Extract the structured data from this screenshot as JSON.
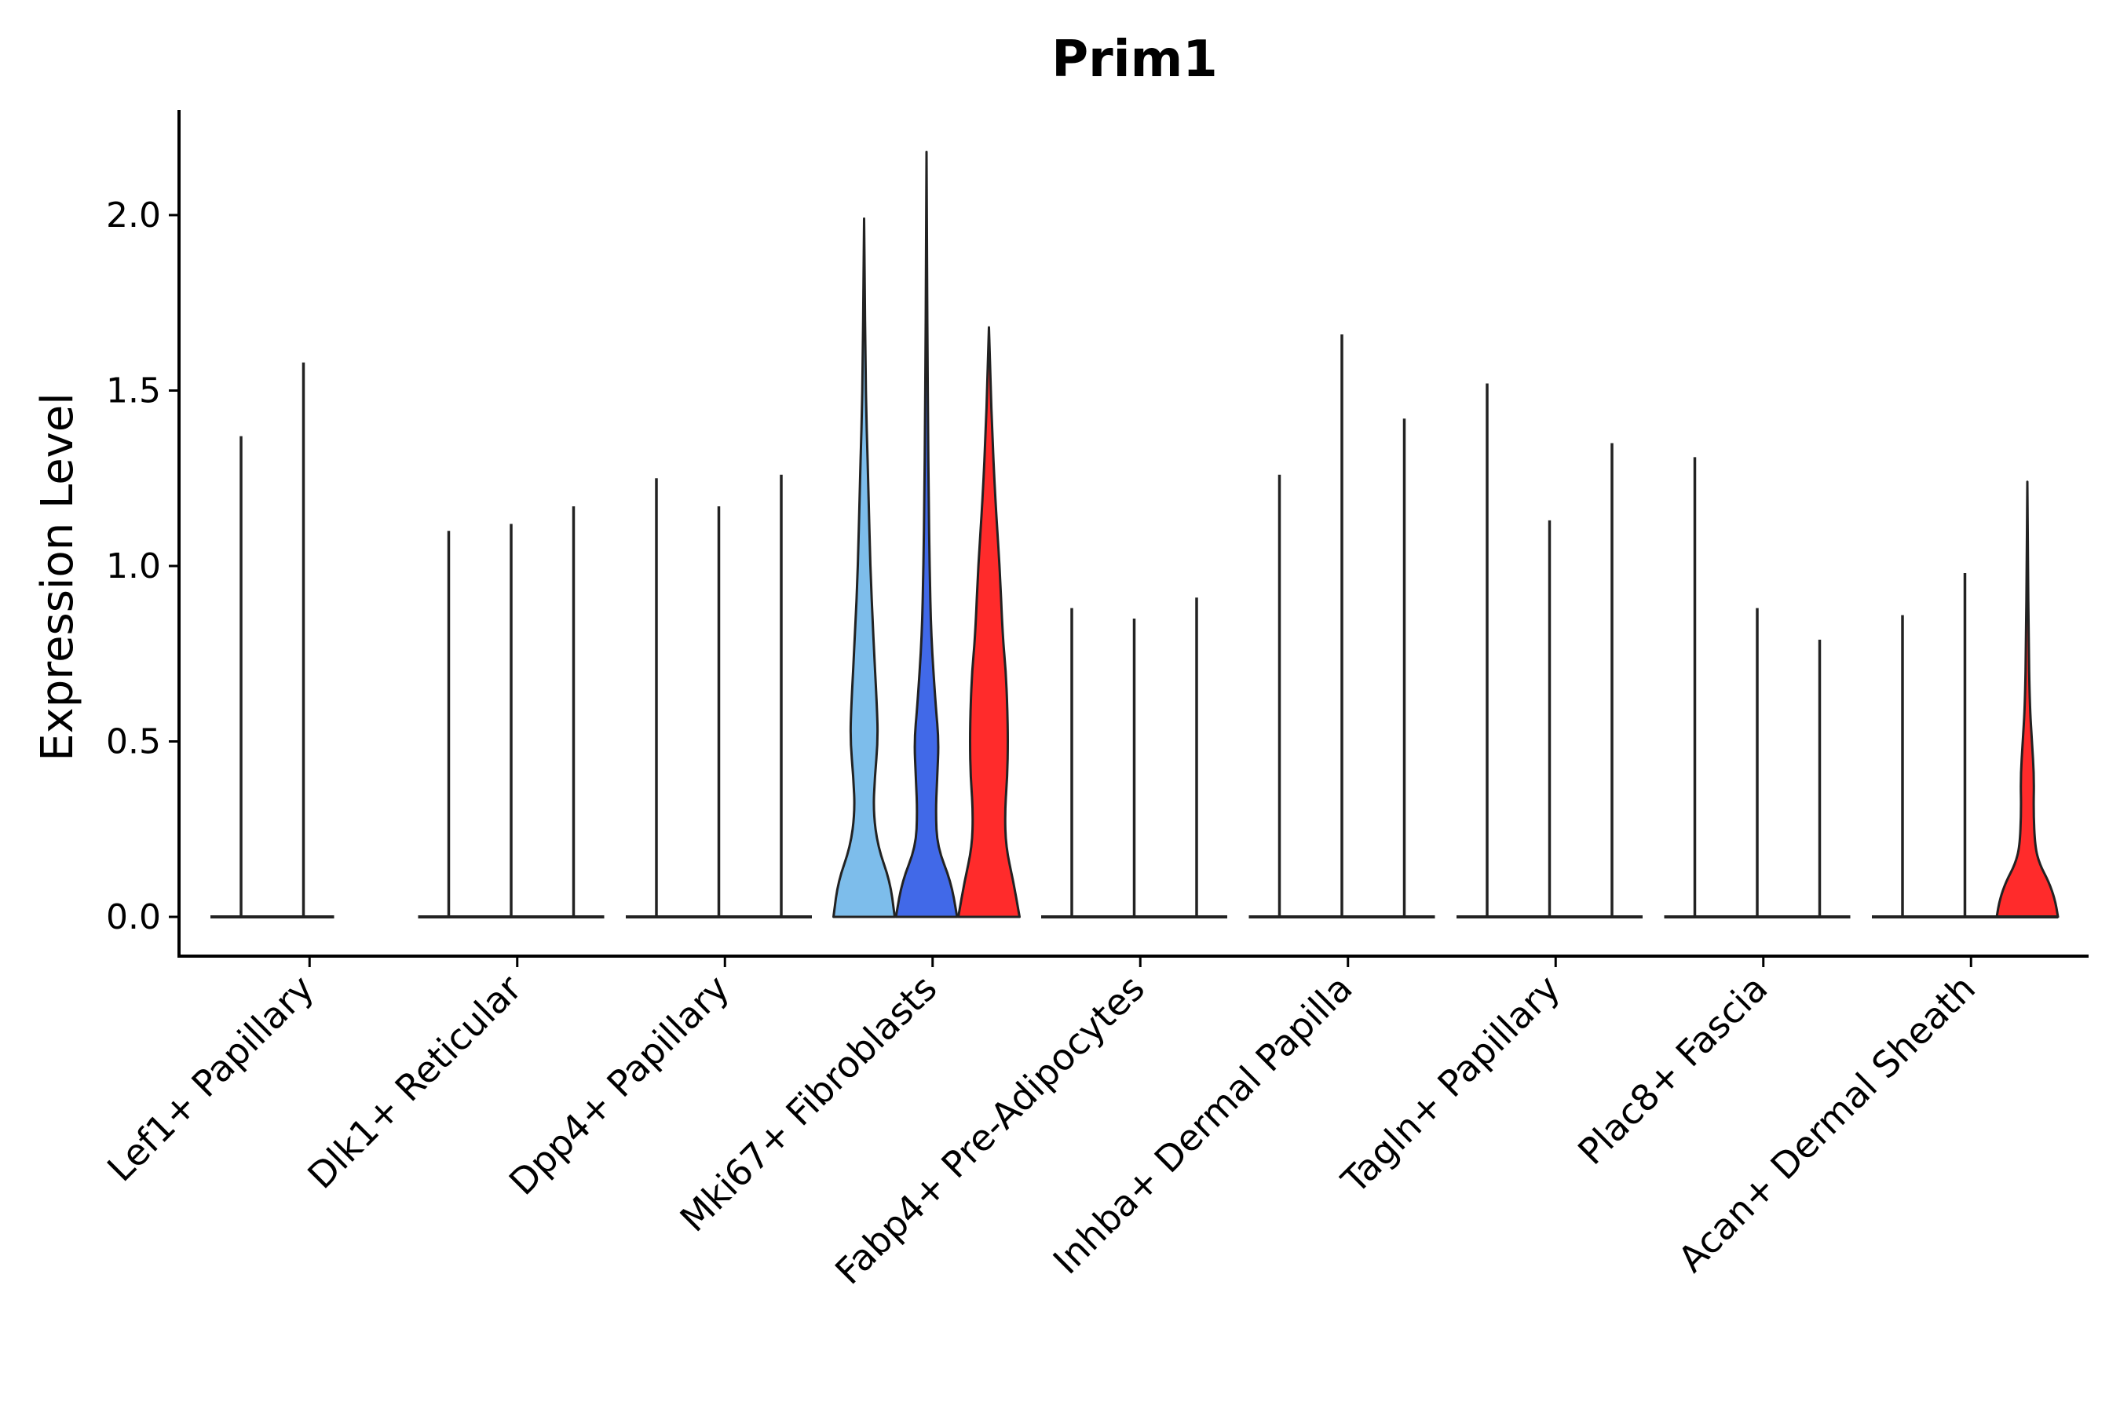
{
  "chart_data": {
    "type": "violin",
    "title": "Prim1",
    "xlabel": "",
    "ylabel": "Expression Level",
    "ylim": [
      -0.11,
      2.3
    ],
    "yticks": [
      0.0,
      0.5,
      1.0,
      1.5,
      2.0
    ],
    "ytick_labels": [
      "0.0",
      "0.5",
      "1.0",
      "1.5",
      "2.0"
    ],
    "grid": false,
    "legend": "none",
    "categories": [
      "Lef1+ Papillary",
      "Dlk1+ Reticular",
      "Dpp4+ Papillary",
      "Mki67+ Fibroblasts",
      "Fabp4+ Pre-Adipocytes",
      "Inhba+ Dermal Papilla",
      "Tagln+ Papillary",
      "Plac8+ Fascia",
      "Acan+ Dermal Sheath"
    ],
    "colors": {
      "light_blue": "#7dbdeb",
      "blue": "#4169e8",
      "red": "#ff2b2b",
      "line": "#222222"
    },
    "groups": [
      {
        "category": "Lef1+ Papillary",
        "violins": [
          {
            "max": 1.37,
            "filled": false
          },
          {
            "max": 1.58,
            "filled": false
          }
        ]
      },
      {
        "category": "Dlk1+ Reticular",
        "violins": [
          {
            "max": 1.1,
            "filled": false
          },
          {
            "max": 1.12,
            "filled": false
          },
          {
            "max": 1.17,
            "filled": false
          }
        ]
      },
      {
        "category": "Dpp4+ Papillary",
        "violins": [
          {
            "max": 1.25,
            "filled": false
          },
          {
            "max": 1.17,
            "filled": false
          },
          {
            "max": 1.26,
            "filled": false
          }
        ]
      },
      {
        "category": "Mki67+ Fibroblasts",
        "violins": [
          {
            "max": 1.99,
            "filled": true,
            "color": "light_blue",
            "profile": [
              [
                0,
                1
              ],
              [
                0.1,
                0.85
              ],
              [
                0.2,
                0.45
              ],
              [
                0.3,
                0.3
              ],
              [
                0.4,
                0.35
              ],
              [
                0.5,
                0.45
              ],
              [
                0.6,
                0.42
              ],
              [
                0.8,
                0.3
              ],
              [
                1.0,
                0.2
              ],
              [
                1.2,
                0.15
              ],
              [
                1.4,
                0.08
              ],
              [
                1.6,
                0.04
              ],
              [
                1.8,
                0.02
              ],
              [
                1.99,
                0
              ]
            ]
          },
          {
            "max": 2.18,
            "filled": true,
            "color": "blue",
            "profile": [
              [
                0,
                1
              ],
              [
                0.1,
                0.8
              ],
              [
                0.2,
                0.35
              ],
              [
                0.3,
                0.3
              ],
              [
                0.4,
                0.35
              ],
              [
                0.5,
                0.4
              ],
              [
                0.6,
                0.3
              ],
              [
                0.8,
                0.15
              ],
              [
                1.0,
                0.1
              ],
              [
                1.2,
                0.07
              ],
              [
                1.4,
                0.05
              ],
              [
                1.6,
                0.03
              ],
              [
                1.8,
                0.02
              ],
              [
                2.18,
                0
              ]
            ]
          },
          {
            "max": 1.68,
            "filled": true,
            "color": "red",
            "profile": [
              [
                0,
                1
              ],
              [
                0.1,
                0.8
              ],
              [
                0.2,
                0.55
              ],
              [
                0.3,
                0.52
              ],
              [
                0.4,
                0.6
              ],
              [
                0.5,
                0.62
              ],
              [
                0.6,
                0.6
              ],
              [
                0.7,
                0.55
              ],
              [
                0.8,
                0.45
              ],
              [
                1.0,
                0.35
              ],
              [
                1.2,
                0.2
              ],
              [
                1.4,
                0.1
              ],
              [
                1.5,
                0.06
              ],
              [
                1.68,
                0
              ]
            ]
          }
        ]
      },
      {
        "category": "Fabp4+ Pre-Adipocytes",
        "violins": [
          {
            "max": 0.88,
            "filled": false
          },
          {
            "max": 0.85,
            "filled": false
          },
          {
            "max": 0.91,
            "filled": false
          }
        ]
      },
      {
        "category": "Inhba+ Dermal Papilla",
        "violins": [
          {
            "max": 1.26,
            "filled": false
          },
          {
            "max": 1.66,
            "filled": false
          },
          {
            "max": 1.42,
            "filled": false
          }
        ]
      },
      {
        "category": "Tagln+ Papillary",
        "violins": [
          {
            "max": 1.52,
            "filled": false
          },
          {
            "max": 1.13,
            "filled": false
          },
          {
            "max": 1.35,
            "filled": false
          }
        ]
      },
      {
        "category": "Plac8+ Fascia",
        "violins": [
          {
            "max": 1.31,
            "filled": false
          },
          {
            "max": 0.88,
            "filled": false
          },
          {
            "max": 0.79,
            "filled": false
          }
        ]
      },
      {
        "category": "Acan+ Dermal Sheath",
        "violins": [
          {
            "max": 0.86,
            "filled": false
          },
          {
            "max": 0.98,
            "filled": false
          },
          {
            "max": 1.24,
            "filled": true,
            "color": "red",
            "profile": [
              [
                0,
                1
              ],
              [
                0.05,
                0.9
              ],
              [
                0.1,
                0.7
              ],
              [
                0.15,
                0.4
              ],
              [
                0.2,
                0.25
              ],
              [
                0.3,
                0.2
              ],
              [
                0.4,
                0.22
              ],
              [
                0.5,
                0.15
              ],
              [
                0.6,
                0.08
              ],
              [
                0.8,
                0.04
              ],
              [
                1.0,
                0.02
              ],
              [
                1.24,
                0
              ]
            ]
          }
        ]
      }
    ]
  }
}
